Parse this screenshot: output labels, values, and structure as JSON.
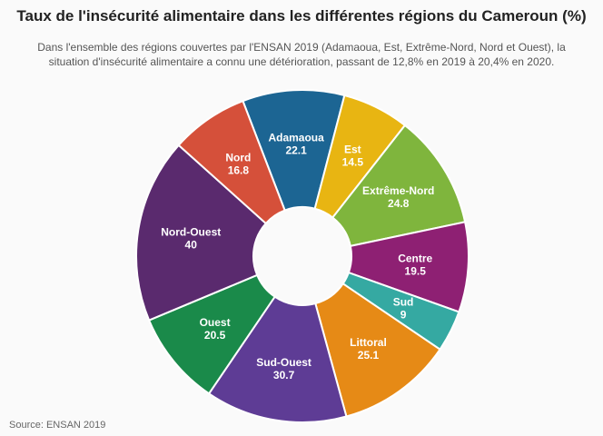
{
  "title": "Taux de l'insécurité alimentaire dans les différentes régions du Cameroun (%)",
  "subtitle": "Dans l'ensemble des régions couvertes par l'ENSAN 2019 (Adamaoua, Est, Extrême-Nord, Nord et Ouest), la situation d'insécurité alimentaire a connu une détérioration, passant de 12,8% en 2019 à 20,4% en 2020.",
  "source": "Source: ENSAN 2019",
  "chart_data": {
    "type": "pie",
    "donut": true,
    "categories": [
      "Adamaoua",
      "Est",
      "Extrême-Nord",
      "Centre",
      "Sud",
      "Littoral",
      "Sud-Ouest",
      "Ouest",
      "Nord-Ouest",
      "Nord"
    ],
    "values": [
      22.1,
      14.5,
      24.8,
      19.5,
      9,
      25.1,
      30.7,
      20.5,
      40,
      16.8
    ],
    "value_labels": [
      "22.1",
      "14.5",
      "24.8",
      "19.5",
      "9",
      "25.1",
      "30.7",
      "20.5",
      "40",
      "16.8"
    ],
    "colors": [
      "#1c6593",
      "#e8b512",
      "#7fb53d",
      "#8e2073",
      "#35a9a2",
      "#e68a16",
      "#5e3c95",
      "#1a8a4a",
      "#5a2a6e",
      "#d5503a"
    ]
  }
}
